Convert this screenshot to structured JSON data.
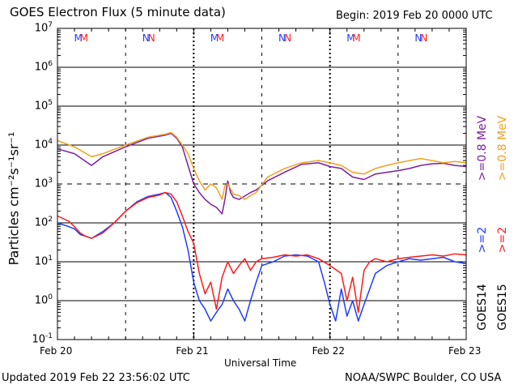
{
  "header": {
    "title": "GOES Electron Flux (5 minute data)",
    "begin": "Begin: 2019 Feb 20 0000 UTC"
  },
  "footer": {
    "updated": "Updated 2019 Feb 22 23:56:02 UTC",
    "credit": "NOAA/SWPC Boulder, CO USA"
  },
  "chart_data": {
    "type": "line",
    "title": "GOES Electron Flux (5 minute data)",
    "xlabel": "Universal Time",
    "ylabel": "Particles cm⁻²s⁻¹sr⁻¹",
    "y_scale": "log",
    "ylim": [
      0.1,
      10000000
    ],
    "xlim": [
      "2019-02-20 00:00",
      "2019-02-23 00:00"
    ],
    "x_unit_hours_since_begin": [
      0,
      72
    ],
    "x_tick_labels": [
      "Feb 20",
      "Feb 21",
      "Feb 22",
      "Feb 23"
    ],
    "y_tick_labels": [
      {
        "base": "10",
        "exp": "-1"
      },
      {
        "base": "10",
        "exp": "0"
      },
      {
        "base": "10",
        "exp": "1"
      },
      {
        "base": "10",
        "exp": "2"
      },
      {
        "base": "10",
        "exp": "3"
      },
      {
        "base": "10",
        "exp": "4"
      },
      {
        "base": "10",
        "exp": "5"
      },
      {
        "base": "10",
        "exp": "6"
      },
      {
        "base": "10",
        "exp": "7"
      }
    ],
    "grid": "horizontal solid at each decade; dashed at 10^3 threshold",
    "legend_right": [
      {
        "label": ">=0.8 MeV",
        "color": "#7b1fa2"
      },
      {
        "label": ">=0.8 MeV",
        "color": "#f0a020"
      },
      {
        "label": ">=2",
        "color": "#1e3cff"
      },
      {
        "label": ">=2",
        "color": "#ff1a1a"
      },
      {
        "label": "GOES14",
        "color": "#000000"
      },
      {
        "label": "GOES15",
        "color": "#000000"
      }
    ],
    "markers": [
      {
        "x_hour": 3.5,
        "label": "M",
        "color": "#1e3cff"
      },
      {
        "x_hour": 4.5,
        "label": "M",
        "color": "#ff1a1a"
      },
      {
        "x_hour": 15.5,
        "label": "N",
        "color": "#1e3cff"
      },
      {
        "x_hour": 16.5,
        "label": "N",
        "color": "#ff1a1a"
      },
      {
        "x_hour": 27.5,
        "label": "M",
        "color": "#1e3cff"
      },
      {
        "x_hour": 28.5,
        "label": "M",
        "color": "#ff1a1a"
      },
      {
        "x_hour": 39.5,
        "label": "N",
        "color": "#1e3cff"
      },
      {
        "x_hour": 40.5,
        "label": "N",
        "color": "#ff1a1a"
      },
      {
        "x_hour": 51.5,
        "label": "M",
        "color": "#1e3cff"
      },
      {
        "x_hour": 52.5,
        "label": "M",
        "color": "#ff1a1a"
      },
      {
        "x_hour": 63.5,
        "label": "N",
        "color": "#1e3cff"
      },
      {
        "x_hour": 64.5,
        "label": "N",
        "color": "#ff1a1a"
      }
    ],
    "series": [
      {
        "name": "GOES14 >=0.8 MeV",
        "color": "#7b1fa2",
        "points": [
          [
            0,
            8000
          ],
          [
            3,
            6000
          ],
          [
            6,
            3000
          ],
          [
            8,
            5000
          ],
          [
            12,
            9000
          ],
          [
            16,
            15000
          ],
          [
            19,
            18000
          ],
          [
            20,
            20000
          ],
          [
            21,
            15000
          ],
          [
            22,
            9000
          ],
          [
            23,
            3000
          ],
          [
            24,
            1000
          ],
          [
            25,
            600
          ],
          [
            26,
            400
          ],
          [
            27,
            300
          ],
          [
            28,
            250
          ],
          [
            29,
            170
          ],
          [
            29.5,
            400
          ],
          [
            30,
            1200
          ],
          [
            30.5,
            600
          ],
          [
            31,
            450
          ],
          [
            32,
            400
          ],
          [
            34,
            600
          ],
          [
            35,
            700
          ],
          [
            37,
            1200
          ],
          [
            40,
            2000
          ],
          [
            43,
            3200
          ],
          [
            46,
            3500
          ],
          [
            48,
            2800
          ],
          [
            50,
            2500
          ],
          [
            52,
            1500
          ],
          [
            54,
            1300
          ],
          [
            56,
            1800
          ],
          [
            58,
            2000
          ],
          [
            60,
            2200
          ],
          [
            62,
            2500
          ],
          [
            64,
            3000
          ],
          [
            66,
            3300
          ],
          [
            68,
            3400
          ],
          [
            70,
            3000
          ],
          [
            72,
            2800
          ]
        ]
      },
      {
        "name": "GOES15 >=0.8 MeV",
        "color": "#f0a020",
        "points": [
          [
            0,
            13000
          ],
          [
            3,
            9000
          ],
          [
            6,
            5000
          ],
          [
            8,
            6000
          ],
          [
            12,
            10000
          ],
          [
            16,
            16000
          ],
          [
            19,
            19000
          ],
          [
            20,
            21000
          ],
          [
            21,
            16000
          ],
          [
            22,
            10000
          ],
          [
            23,
            6000
          ],
          [
            24,
            2500
          ],
          [
            25,
            1200
          ],
          [
            26,
            700
          ],
          [
            27,
            1000
          ],
          [
            28,
            800
          ],
          [
            29,
            400
          ],
          [
            29.5,
            900
          ],
          [
            30,
            1000
          ],
          [
            31,
            550
          ],
          [
            32,
            500
          ],
          [
            33,
            400
          ],
          [
            34,
            500
          ],
          [
            35,
            600
          ],
          [
            37,
            1500
          ],
          [
            40,
            2500
          ],
          [
            43,
            3500
          ],
          [
            46,
            4000
          ],
          [
            48,
            3500
          ],
          [
            50,
            3000
          ],
          [
            52,
            2000
          ],
          [
            54,
            1800
          ],
          [
            56,
            2500
          ],
          [
            58,
            3000
          ],
          [
            60,
            3500
          ],
          [
            62,
            4000
          ],
          [
            64,
            4500
          ],
          [
            66,
            4000
          ],
          [
            68,
            3500
          ],
          [
            70,
            3800
          ],
          [
            72,
            3500
          ]
        ]
      },
      {
        "name": "GOES14 >=2",
        "color": "#1e3cff",
        "points": [
          [
            0,
            100
          ],
          [
            2,
            80
          ],
          [
            3,
            70
          ],
          [
            4,
            50
          ],
          [
            5,
            45
          ],
          [
            6,
            40
          ],
          [
            8,
            60
          ],
          [
            10,
            100
          ],
          [
            12,
            200
          ],
          [
            14,
            350
          ],
          [
            16,
            480
          ],
          [
            18,
            550
          ],
          [
            19,
            600
          ],
          [
            20,
            450
          ],
          [
            21,
            200
          ],
          [
            22,
            80
          ],
          [
            23,
            20
          ],
          [
            24,
            3
          ],
          [
            25,
            1
          ],
          [
            26,
            0.6
          ],
          [
            27,
            0.3
          ],
          [
            28,
            0.5
          ],
          [
            29,
            0.8
          ],
          [
            30,
            2
          ],
          [
            31,
            1
          ],
          [
            32,
            0.6
          ],
          [
            33,
            0.3
          ],
          [
            34,
            1
          ],
          [
            35,
            3
          ],
          [
            36,
            8
          ],
          [
            38,
            10
          ],
          [
            40,
            14
          ],
          [
            42,
            15
          ],
          [
            44,
            14
          ],
          [
            46,
            10
          ],
          [
            47,
            3
          ],
          [
            48,
            0.8
          ],
          [
            49,
            0.3
          ],
          [
            50,
            2
          ],
          [
            51,
            0.4
          ],
          [
            52,
            1
          ],
          [
            53,
            0.3
          ],
          [
            54,
            0.8
          ],
          [
            55,
            2
          ],
          [
            56,
            5
          ],
          [
            58,
            8
          ],
          [
            60,
            10
          ],
          [
            62,
            12
          ],
          [
            64,
            11
          ],
          [
            66,
            12
          ],
          [
            68,
            13
          ],
          [
            70,
            10
          ],
          [
            72,
            9
          ]
        ]
      },
      {
        "name": "GOES15 >=2",
        "color": "#ff1a1a",
        "points": [
          [
            0,
            150
          ],
          [
            2,
            110
          ],
          [
            3,
            80
          ],
          [
            4,
            55
          ],
          [
            5,
            45
          ],
          [
            6,
            40
          ],
          [
            8,
            55
          ],
          [
            10,
            100
          ],
          [
            12,
            200
          ],
          [
            14,
            330
          ],
          [
            16,
            450
          ],
          [
            18,
            520
          ],
          [
            19,
            600
          ],
          [
            20,
            550
          ],
          [
            21,
            350
          ],
          [
            22,
            150
          ],
          [
            23,
            60
          ],
          [
            24,
            30
          ],
          [
            25,
            5
          ],
          [
            26,
            1.5
          ],
          [
            27,
            3
          ],
          [
            28,
            0.6
          ],
          [
            29,
            4
          ],
          [
            30,
            10
          ],
          [
            31,
            5
          ],
          [
            32,
            8
          ],
          [
            33,
            12
          ],
          [
            34,
            6
          ],
          [
            35,
            10
          ],
          [
            36,
            12
          ],
          [
            38,
            13
          ],
          [
            40,
            15
          ],
          [
            42,
            14
          ],
          [
            44,
            15
          ],
          [
            46,
            12
          ],
          [
            48,
            8
          ],
          [
            50,
            5
          ],
          [
            51,
            1
          ],
          [
            52,
            4
          ],
          [
            53,
            0.5
          ],
          [
            54,
            6
          ],
          [
            55,
            10
          ],
          [
            56,
            12
          ],
          [
            58,
            10
          ],
          [
            60,
            12
          ],
          [
            62,
            13
          ],
          [
            64,
            14
          ],
          [
            66,
            15
          ],
          [
            68,
            14
          ],
          [
            70,
            16
          ],
          [
            72,
            15
          ]
        ]
      }
    ]
  }
}
